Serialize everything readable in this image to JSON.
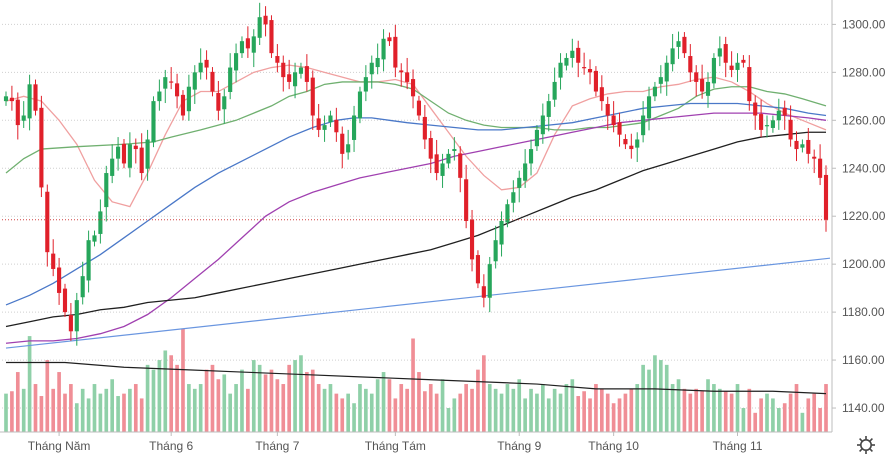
{
  "chart_data": {
    "type": "candlestick",
    "y_axis": {
      "position": "right",
      "ticks": [
        1300,
        1280,
        1260,
        1240,
        1220,
        1200,
        1180,
        1160,
        1140
      ],
      "tick_labels": [
        "1300.00",
        "1280.00",
        "1260.00",
        "1240.00",
        "1220.00",
        "1200.00",
        "1180.00",
        "1160.00",
        "1140.00"
      ],
      "range": [
        1130,
        1306
      ]
    },
    "x_axis": {
      "labels": [
        "Tháng Năm",
        "Tháng 6",
        "Tháng 7",
        "Tháng Tám",
        "Tháng 9",
        "Tháng 10",
        "Tháng 11"
      ],
      "label_positions": [
        9,
        28,
        46,
        66,
        87,
        103,
        124
      ],
      "count": 140
    },
    "last_price_line": 1218.5,
    "colors": {
      "up": "#26a65b",
      "down": "#e0202a",
      "vol_up": "#8fd0a8",
      "vol_down": "#f08e96",
      "ma20": "#f0a0a0",
      "ma50": "#70b070",
      "ma100": "#4a78c8",
      "ma_purple": "#a040b0",
      "ma200": "#202020",
      "trendline": "#6a96e0",
      "grid": "#cfcfcf",
      "axis_text": "#555555"
    },
    "trend_line": {
      "from": [
        0,
        1165
      ],
      "to": [
        139,
        1202.5
      ]
    },
    "close_series": [
      1270,
      1268,
      1258,
      1262,
      1275,
      1264,
      1232,
      1205,
      1198,
      1188,
      1180,
      1172,
      1185,
      1195,
      1210,
      1212,
      1222,
      1238,
      1244,
      1249,
      1242,
      1250,
      1248,
      1238,
      1252,
      1268,
      1272,
      1278,
      1276,
      1270,
      1262,
      1274,
      1280,
      1284,
      1282,
      1272,
      1264,
      1270,
      1282,
      1288,
      1293,
      1290,
      1295,
      1303,
      1300,
      1288,
      1284,
      1278,
      1276,
      1280,
      1282,
      1276,
      1262,
      1256,
      1258,
      1262,
      1255,
      1246,
      1250,
      1262,
      1272,
      1278,
      1284,
      1286,
      1294,
      1293,
      1282,
      1280,
      1276,
      1270,
      1262,
      1252,
      1244,
      1238,
      1242,
      1246,
      1248,
      1236,
      1218,
      1202,
      1192,
      1186,
      1200,
      1210,
      1218,
      1225,
      1230,
      1236,
      1242,
      1248,
      1256,
      1262,
      1268,
      1276,
      1284,
      1286,
      1289,
      1284,
      1282,
      1280,
      1272,
      1268,
      1262,
      1258,
      1254,
      1250,
      1248,
      1252,
      1262,
      1270,
      1274,
      1278,
      1284,
      1290,
      1293,
      1288,
      1280,
      1276,
      1272,
      1276,
      1286,
      1290,
      1284,
      1281,
      1284,
      1284,
      1268,
      1262,
      1256,
      1258,
      1260,
      1264,
      1262,
      1252,
      1248,
      1250,
      1246,
      1244,
      1236,
      1218.5
    ],
    "volume_series": [
      1146,
      1147,
      1155,
      1148,
      1170,
      1150,
      1145,
      1160,
      1148,
      1155,
      1146,
      1150,
      1142,
      1148,
      1144,
      1150,
      1146,
      1148,
      1152,
      1145,
      1146,
      1148,
      1150,
      1144,
      1158,
      1156,
      1160,
      1164,
      1162,
      1158,
      1173,
      1150,
      1148,
      1150,
      1156,
      1158,
      1152,
      1154,
      1146,
      1150,
      1156,
      1148,
      1160,
      1158,
      1154,
      1156,
      1152,
      1150,
      1158,
      1160,
      1162,
      1155,
      1156,
      1150,
      1148,
      1150,
      1146,
      1144,
      1146,
      1142,
      1150,
      1148,
      1146,
      1152,
      1155,
      1152,
      1144,
      1150,
      1148,
      1169,
      1155,
      1147,
      1150,
      1146,
      1152,
      1140,
      1144,
      1146,
      1150,
      1148,
      1156,
      1162,
      1150,
      1148,
      1146,
      1150,
      1148,
      1152,
      1144,
      1148,
      1146,
      1150,
      1144,
      1148,
      1146,
      1150,
      1152,
      1145,
      1147,
      1144,
      1150,
      1148,
      1146,
      1142,
      1144,
      1146,
      1148,
      1150,
      1158,
      1156,
      1162,
      1160,
      1158,
      1150,
      1152,
      1148,
      1146,
      1148,
      1147,
      1152,
      1150,
      1148,
      1147,
      1146,
      1150,
      1140,
      1148,
      1138,
      1144,
      1146,
      1144,
      1140,
      1142,
      1146,
      1150,
      1138,
      1144,
      1146,
      1140,
      1150
    ],
    "volume_avg_line": [
      [
        0,
        1159
      ],
      [
        10,
        1159
      ],
      [
        20,
        1157
      ],
      [
        30,
        1156
      ],
      [
        40,
        1155
      ],
      [
        50,
        1154
      ],
      [
        60,
        1153
      ],
      [
        70,
        1152
      ],
      [
        80,
        1151
      ],
      [
        90,
        1150
      ],
      [
        100,
        1148
      ],
      [
        110,
        1148
      ],
      [
        120,
        1147
      ],
      [
        130,
        1147
      ],
      [
        139,
        1146
      ]
    ],
    "moving_averages": [
      {
        "key": "ma20",
        "points": [
          [
            0,
            1268
          ],
          [
            3,
            1270
          ],
          [
            6,
            1268
          ],
          [
            9,
            1260
          ],
          [
            12,
            1250
          ],
          [
            15,
            1235
          ],
          [
            18,
            1226
          ],
          [
            21,
            1224
          ],
          [
            24,
            1238
          ],
          [
            27,
            1254
          ],
          [
            30,
            1268
          ],
          [
            33,
            1272
          ],
          [
            36,
            1272
          ],
          [
            39,
            1276
          ],
          [
            42,
            1280
          ],
          [
            45,
            1282
          ],
          [
            48,
            1283
          ],
          [
            51,
            1282
          ],
          [
            54,
            1280
          ],
          [
            57,
            1278
          ],
          [
            60,
            1276
          ],
          [
            63,
            1276
          ],
          [
            66,
            1277
          ],
          [
            69,
            1275
          ],
          [
            72,
            1265
          ],
          [
            75,
            1255
          ],
          [
            78,
            1245
          ],
          [
            81,
            1237
          ],
          [
            84,
            1231
          ],
          [
            87,
            1232
          ],
          [
            90,
            1238
          ],
          [
            93,
            1254
          ],
          [
            96,
            1266
          ],
          [
            99,
            1269
          ],
          [
            102,
            1271
          ],
          [
            105,
            1272
          ],
          [
            108,
            1272
          ],
          [
            111,
            1274
          ],
          [
            114,
            1275
          ],
          [
            117,
            1277
          ],
          [
            120,
            1278
          ],
          [
            123,
            1276
          ],
          [
            126,
            1272
          ],
          [
            129,
            1267
          ],
          [
            132,
            1263
          ],
          [
            135,
            1260
          ],
          [
            139,
            1256
          ]
        ]
      },
      {
        "key": "ma50",
        "points": [
          [
            0,
            1238
          ],
          [
            3,
            1244
          ],
          [
            6,
            1248
          ],
          [
            12,
            1249
          ],
          [
            20,
            1250
          ],
          [
            25,
            1251
          ],
          [
            28,
            1253
          ],
          [
            33,
            1256
          ],
          [
            36,
            1258
          ],
          [
            39,
            1260
          ],
          [
            42,
            1263
          ],
          [
            45,
            1266
          ],
          [
            48,
            1270
          ],
          [
            51,
            1272
          ],
          [
            54,
            1275
          ],
          [
            57,
            1276
          ],
          [
            60,
            1276
          ],
          [
            63,
            1276
          ],
          [
            66,
            1275
          ],
          [
            69,
            1273
          ],
          [
            72,
            1268
          ],
          [
            75,
            1263
          ],
          [
            78,
            1260
          ],
          [
            81,
            1258
          ],
          [
            84,
            1257
          ],
          [
            87,
            1257
          ],
          [
            90,
            1257
          ],
          [
            93,
            1256
          ],
          [
            96,
            1256
          ],
          [
            99,
            1257
          ],
          [
            102,
            1257
          ],
          [
            105,
            1258
          ],
          [
            108,
            1259
          ],
          [
            111,
            1262
          ],
          [
            114,
            1265
          ],
          [
            117,
            1270
          ],
          [
            120,
            1273
          ],
          [
            123,
            1274
          ],
          [
            126,
            1274
          ],
          [
            129,
            1272
          ],
          [
            132,
            1271
          ],
          [
            135,
            1269
          ],
          [
            139,
            1266
          ]
        ]
      },
      {
        "key": "ma100",
        "points": [
          [
            0,
            1183
          ],
          [
            4,
            1187
          ],
          [
            8,
            1192
          ],
          [
            12,
            1198
          ],
          [
            16,
            1204
          ],
          [
            20,
            1211
          ],
          [
            24,
            1218
          ],
          [
            28,
            1225
          ],
          [
            32,
            1232
          ],
          [
            36,
            1238
          ],
          [
            40,
            1243
          ],
          [
            44,
            1248
          ],
          [
            48,
            1253
          ],
          [
            52,
            1257
          ],
          [
            56,
            1260
          ],
          [
            59,
            1261
          ],
          [
            62,
            1261
          ],
          [
            65,
            1260
          ],
          [
            68,
            1259
          ],
          [
            72,
            1258
          ],
          [
            76,
            1257
          ],
          [
            80,
            1256
          ],
          [
            84,
            1256
          ],
          [
            88,
            1257
          ],
          [
            92,
            1258
          ],
          [
            96,
            1259
          ],
          [
            100,
            1261
          ],
          [
            104,
            1263
          ],
          [
            108,
            1265
          ],
          [
            112,
            1266
          ],
          [
            116,
            1267
          ],
          [
            120,
            1267
          ],
          [
            124,
            1267
          ],
          [
            128,
            1266
          ],
          [
            132,
            1265
          ],
          [
            136,
            1263
          ],
          [
            139,
            1262
          ]
        ]
      },
      {
        "key": "ma_purple",
        "points": [
          [
            0,
            1167
          ],
          [
            4,
            1168
          ],
          [
            8,
            1168
          ],
          [
            12,
            1169
          ],
          [
            16,
            1171
          ],
          [
            20,
            1174
          ],
          [
            24,
            1179
          ],
          [
            28,
            1186
          ],
          [
            32,
            1194
          ],
          [
            36,
            1202
          ],
          [
            40,
            1211
          ],
          [
            44,
            1220
          ],
          [
            48,
            1226
          ],
          [
            52,
            1230
          ],
          [
            56,
            1233
          ],
          [
            60,
            1236
          ],
          [
            64,
            1238
          ],
          [
            68,
            1240
          ],
          [
            72,
            1242
          ],
          [
            76,
            1245
          ],
          [
            80,
            1247
          ],
          [
            84,
            1249
          ],
          [
            88,
            1251
          ],
          [
            92,
            1253
          ],
          [
            96,
            1255
          ],
          [
            100,
            1257
          ],
          [
            104,
            1259
          ],
          [
            108,
            1260
          ],
          [
            112,
            1261
          ],
          [
            116,
            1262
          ],
          [
            120,
            1263
          ],
          [
            124,
            1263
          ],
          [
            128,
            1263
          ],
          [
            132,
            1262
          ],
          [
            136,
            1261
          ],
          [
            139,
            1260
          ]
        ]
      },
      {
        "key": "ma200",
        "points": [
          [
            0,
            1174
          ],
          [
            4,
            1176
          ],
          [
            8,
            1178
          ],
          [
            12,
            1179
          ],
          [
            16,
            1181
          ],
          [
            20,
            1182
          ],
          [
            24,
            1184
          ],
          [
            28,
            1185
          ],
          [
            32,
            1186
          ],
          [
            36,
            1188
          ],
          [
            40,
            1190
          ],
          [
            44,
            1192
          ],
          [
            48,
            1194
          ],
          [
            52,
            1196
          ],
          [
            56,
            1198
          ],
          [
            60,
            1200
          ],
          [
            64,
            1202
          ],
          [
            68,
            1204
          ],
          [
            72,
            1206
          ],
          [
            76,
            1209
          ],
          [
            80,
            1212
          ],
          [
            84,
            1216
          ],
          [
            88,
            1220
          ],
          [
            92,
            1224
          ],
          [
            96,
            1228
          ],
          [
            100,
            1231
          ],
          [
            104,
            1235
          ],
          [
            108,
            1239
          ],
          [
            112,
            1242
          ],
          [
            116,
            1245
          ],
          [
            120,
            1248
          ],
          [
            124,
            1251
          ],
          [
            128,
            1253
          ],
          [
            132,
            1254
          ],
          [
            136,
            1255
          ],
          [
            139,
            1255
          ]
        ]
      }
    ]
  }
}
